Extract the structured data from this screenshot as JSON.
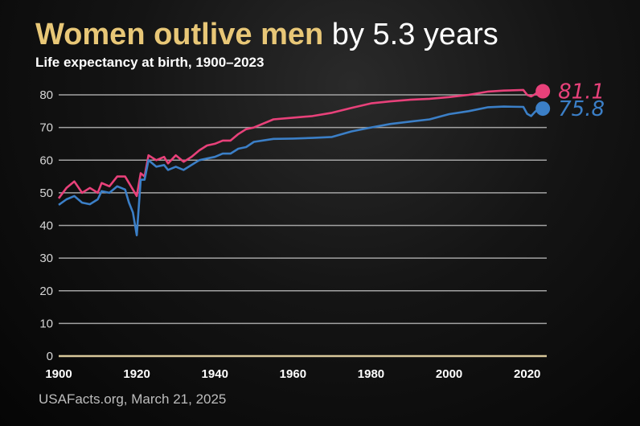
{
  "header": {
    "title_strong": "Women outlive men",
    "title_rest": " by 5.3 years",
    "subtitle": "Life expectancy at birth, 1900–2023"
  },
  "footer": {
    "source": "USAFacts.org, March 21, 2025"
  },
  "colors": {
    "women": "#e8417a",
    "men": "#3b7fc7",
    "accent": "#e8c777",
    "grid": "#a3a3a3",
    "baseline": "#d8c79a"
  },
  "chart_data": {
    "type": "line",
    "title": "Women outlive men by 5.3 years",
    "subtitle": "Life expectancy at birth, 1900–2023",
    "xlim": [
      1900,
      2025
    ],
    "ylim": [
      0,
      80
    ],
    "x_ticks": [
      1900,
      1920,
      1940,
      1960,
      1980,
      2000,
      2020
    ],
    "y_ticks": [
      0,
      10,
      20,
      30,
      40,
      50,
      60,
      70,
      80
    ],
    "grid": true,
    "series": [
      {
        "key": "women",
        "end_label": "81.1",
        "points": [
          [
            1900,
            48.3
          ],
          [
            1902,
            51.5
          ],
          [
            1904,
            53.5
          ],
          [
            1906,
            50
          ],
          [
            1908,
            51.5
          ],
          [
            1910,
            50
          ],
          [
            1911,
            53
          ],
          [
            1913,
            52
          ],
          [
            1915,
            55
          ],
          [
            1917,
            55
          ],
          [
            1919,
            51
          ],
          [
            1920,
            49
          ],
          [
            1921,
            56
          ],
          [
            1922,
            55
          ],
          [
            1923,
            61.5
          ],
          [
            1925,
            60
          ],
          [
            1927,
            61
          ],
          [
            1928,
            59
          ],
          [
            1930,
            61.5
          ],
          [
            1932,
            59.5
          ],
          [
            1934,
            61
          ],
          [
            1936,
            63
          ],
          [
            1938,
            64.5
          ],
          [
            1940,
            65
          ],
          [
            1942,
            66
          ],
          [
            1944,
            66
          ],
          [
            1946,
            68
          ],
          [
            1948,
            69.5
          ],
          [
            1950,
            70
          ],
          [
            1955,
            72.5
          ],
          [
            1960,
            73
          ],
          [
            1965,
            73.5
          ],
          [
            1970,
            74.5
          ],
          [
            1975,
            76
          ],
          [
            1980,
            77.4
          ],
          [
            1985,
            78
          ],
          [
            1990,
            78.5
          ],
          [
            1995,
            78.8
          ],
          [
            2000,
            79.3
          ],
          [
            2005,
            80
          ],
          [
            2010,
            81
          ],
          [
            2014,
            81.3
          ],
          [
            2019,
            81.5
          ],
          [
            2020,
            80
          ],
          [
            2021,
            79.5
          ],
          [
            2022,
            80.2
          ],
          [
            2023,
            81.1
          ]
        ],
        "end_point": [
          2024,
          81.1
        ]
      },
      {
        "key": "men",
        "end_label": "75.8",
        "points": [
          [
            1900,
            46.3
          ],
          [
            1902,
            48
          ],
          [
            1904,
            49
          ],
          [
            1906,
            47
          ],
          [
            1908,
            46.5
          ],
          [
            1910,
            48
          ],
          [
            1911,
            50.5
          ],
          [
            1913,
            50
          ],
          [
            1915,
            52
          ],
          [
            1917,
            51
          ],
          [
            1918,
            47
          ],
          [
            1919,
            44
          ],
          [
            1920,
            37
          ],
          [
            1921,
            54
          ],
          [
            1922,
            54
          ],
          [
            1923,
            60
          ],
          [
            1925,
            58
          ],
          [
            1927,
            58.5
          ],
          [
            1928,
            57
          ],
          [
            1930,
            58
          ],
          [
            1932,
            57
          ],
          [
            1934,
            58.5
          ],
          [
            1936,
            60
          ],
          [
            1938,
            60.5
          ],
          [
            1940,
            61
          ],
          [
            1942,
            62
          ],
          [
            1944,
            62
          ],
          [
            1946,
            63.5
          ],
          [
            1948,
            64
          ],
          [
            1950,
            65.6
          ],
          [
            1955,
            66.5
          ],
          [
            1960,
            66.6
          ],
          [
            1965,
            66.8
          ],
          [
            1970,
            67.1
          ],
          [
            1975,
            68.8
          ],
          [
            1980,
            70
          ],
          [
            1985,
            71.1
          ],
          [
            1990,
            71.8
          ],
          [
            1995,
            72.5
          ],
          [
            2000,
            74.1
          ],
          [
            2005,
            75
          ],
          [
            2010,
            76.2
          ],
          [
            2014,
            76.4
          ],
          [
            2019,
            76.3
          ],
          [
            2020,
            74.2
          ],
          [
            2021,
            73.5
          ],
          [
            2022,
            74.8
          ],
          [
            2023,
            75.8
          ]
        ],
        "end_point": [
          2024,
          75.8
        ]
      }
    ]
  }
}
